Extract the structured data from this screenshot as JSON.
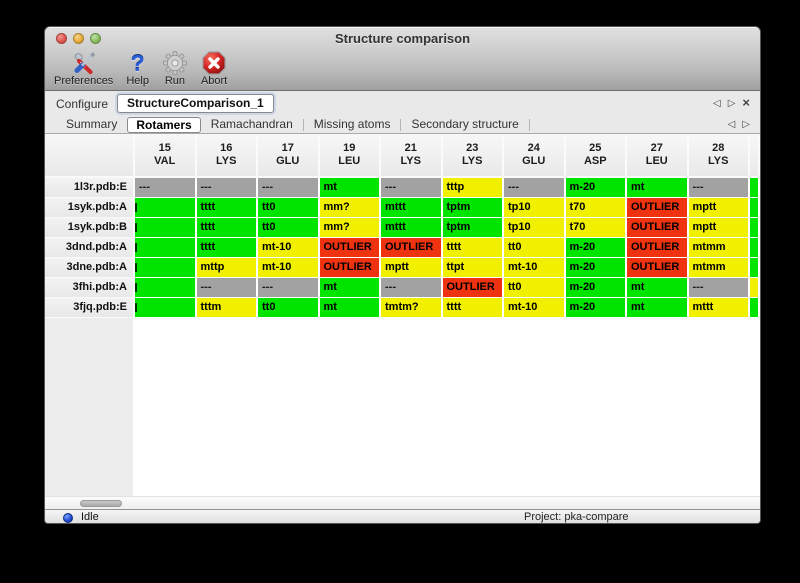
{
  "window": {
    "title": "Structure comparison"
  },
  "toolbar": {
    "buttons": [
      {
        "label": "Preferences"
      },
      {
        "label": "Help",
        "glyph": "?"
      },
      {
        "label": "Run"
      },
      {
        "label": "Abort"
      }
    ]
  },
  "configure": {
    "label": "Configure",
    "value": "StructureComparison_1"
  },
  "config_nav": {
    "prev": "◁",
    "next": "▷",
    "close": "×"
  },
  "tabs": [
    {
      "label": "Summary",
      "active": false
    },
    {
      "label": "Rotamers",
      "active": true
    },
    {
      "label": "Ramachandran",
      "active": false
    },
    {
      "label": "Missing atoms",
      "active": false
    },
    {
      "label": "Secondary structure",
      "active": false
    }
  ],
  "tab_nav": {
    "prev": "◁",
    "next": "▷"
  },
  "colors": {
    "green": "#00e400",
    "yellow": "#f0f000",
    "red": "#ef3310",
    "gray": "#a2a2a2"
  },
  "table": {
    "columns": [
      {
        "num": "15",
        "name": "VAL"
      },
      {
        "num": "16",
        "name": "LYS"
      },
      {
        "num": "17",
        "name": "GLU"
      },
      {
        "num": "19",
        "name": "LEU"
      },
      {
        "num": "21",
        "name": "LYS"
      },
      {
        "num": "23",
        "name": "LYS"
      },
      {
        "num": "24",
        "name": "GLU"
      },
      {
        "num": "25",
        "name": "ASP"
      },
      {
        "num": "27",
        "name": "LEU"
      },
      {
        "num": "28",
        "name": "LYS"
      }
    ],
    "rows": [
      {
        "label": "1l3r.pdb:E",
        "extra": "green",
        "cells": [
          {
            "v": "---",
            "c": "gray"
          },
          {
            "v": "---",
            "c": "gray"
          },
          {
            "v": "---",
            "c": "gray"
          },
          {
            "v": "mt",
            "c": "green"
          },
          {
            "v": "---",
            "c": "gray"
          },
          {
            "v": "tttp",
            "c": "yellow"
          },
          {
            "v": "---",
            "c": "gray"
          },
          {
            "v": "m-20",
            "c": "green"
          },
          {
            "v": "mt",
            "c": "green"
          },
          {
            "v": "---",
            "c": "gray"
          }
        ]
      },
      {
        "label": "1syk.pdb:A",
        "extra": "green",
        "cells": [
          {
            "v": "",
            "c": "green",
            "clipped": true
          },
          {
            "v": "tttt",
            "c": "green"
          },
          {
            "v": "tt0",
            "c": "green"
          },
          {
            "v": "mm?",
            "c": "yellow"
          },
          {
            "v": "mttt",
            "c": "green"
          },
          {
            "v": "tptm",
            "c": "green"
          },
          {
            "v": "tp10",
            "c": "yellow"
          },
          {
            "v": "t70",
            "c": "yellow"
          },
          {
            "v": "OUTLIER",
            "c": "red"
          },
          {
            "v": "mptt",
            "c": "yellow"
          }
        ]
      },
      {
        "label": "1syk.pdb:B",
        "extra": "green",
        "cells": [
          {
            "v": "",
            "c": "green",
            "clipped": true
          },
          {
            "v": "tttt",
            "c": "green"
          },
          {
            "v": "tt0",
            "c": "green"
          },
          {
            "v": "mm?",
            "c": "yellow"
          },
          {
            "v": "mttt",
            "c": "green"
          },
          {
            "v": "tptm",
            "c": "green"
          },
          {
            "v": "tp10",
            "c": "yellow"
          },
          {
            "v": "t70",
            "c": "yellow"
          },
          {
            "v": "OUTLIER",
            "c": "red"
          },
          {
            "v": "mptt",
            "c": "yellow"
          }
        ]
      },
      {
        "label": "3dnd.pdb:A",
        "extra": "green",
        "cells": [
          {
            "v": "",
            "c": "green",
            "clipped": true
          },
          {
            "v": "tttt",
            "c": "green"
          },
          {
            "v": "mt-10",
            "c": "yellow"
          },
          {
            "v": "OUTLIER",
            "c": "red"
          },
          {
            "v": "OUTLIER",
            "c": "red"
          },
          {
            "v": "tttt",
            "c": "yellow"
          },
          {
            "v": "tt0",
            "c": "yellow"
          },
          {
            "v": "m-20",
            "c": "green"
          },
          {
            "v": "OUTLIER",
            "c": "red"
          },
          {
            "v": "mtmm",
            "c": "yellow"
          }
        ]
      },
      {
        "label": "3dne.pdb:A",
        "extra": "green",
        "cells": [
          {
            "v": "",
            "c": "green",
            "clipped": true
          },
          {
            "v": "mttp",
            "c": "yellow"
          },
          {
            "v": "mt-10",
            "c": "yellow"
          },
          {
            "v": "OUTLIER",
            "c": "red"
          },
          {
            "v": "mptt",
            "c": "yellow"
          },
          {
            "v": "ttpt",
            "c": "yellow"
          },
          {
            "v": "mt-10",
            "c": "yellow"
          },
          {
            "v": "m-20",
            "c": "green"
          },
          {
            "v": "OUTLIER",
            "c": "red"
          },
          {
            "v": "mtmm",
            "c": "yellow"
          }
        ]
      },
      {
        "label": "3fhi.pdb:A",
        "extra": "yellow",
        "cells": [
          {
            "v": "",
            "c": "green",
            "clipped": true
          },
          {
            "v": "---",
            "c": "gray"
          },
          {
            "v": "---",
            "c": "gray"
          },
          {
            "v": "mt",
            "c": "green"
          },
          {
            "v": "---",
            "c": "gray"
          },
          {
            "v": "OUTLIER",
            "c": "red"
          },
          {
            "v": "tt0",
            "c": "yellow"
          },
          {
            "v": "m-20",
            "c": "green"
          },
          {
            "v": "mt",
            "c": "green"
          },
          {
            "v": "---",
            "c": "gray"
          }
        ]
      },
      {
        "label": "3fjq.pdb:E",
        "extra": "green",
        "cells": [
          {
            "v": "",
            "c": "green",
            "clipped": true
          },
          {
            "v": "tttm",
            "c": "yellow"
          },
          {
            "v": "tt0",
            "c": "green"
          },
          {
            "v": "mt",
            "c": "green"
          },
          {
            "v": "tmtm?",
            "c": "yellow"
          },
          {
            "v": "tttt",
            "c": "yellow"
          },
          {
            "v": "mt-10",
            "c": "yellow"
          },
          {
            "v": "m-20",
            "c": "green"
          },
          {
            "v": "mt",
            "c": "green"
          },
          {
            "v": "mttt",
            "c": "yellow"
          }
        ]
      }
    ]
  },
  "statusbar": {
    "status": "Idle",
    "project_label": "Project: pka-compare"
  }
}
